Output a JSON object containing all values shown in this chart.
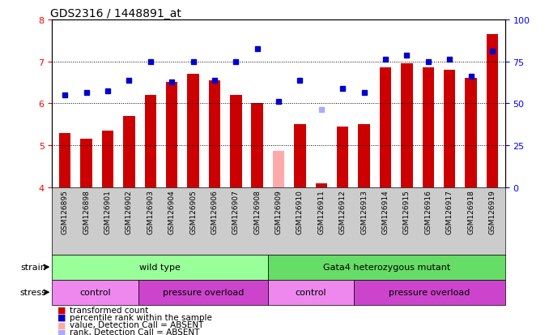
{
  "title": "GDS2316 / 1448891_at",
  "samples": [
    "GSM126895",
    "GSM126898",
    "GSM126901",
    "GSM126902",
    "GSM126903",
    "GSM126904",
    "GSM126905",
    "GSM126906",
    "GSM126907",
    "GSM126908",
    "GSM126909",
    "GSM126910",
    "GSM126911",
    "GSM126912",
    "GSM126913",
    "GSM126914",
    "GSM126915",
    "GSM126916",
    "GSM126917",
    "GSM126918",
    "GSM126919"
  ],
  "bar_values": [
    5.3,
    5.15,
    5.35,
    5.7,
    6.2,
    6.5,
    6.7,
    6.55,
    6.2,
    6.0,
    4.87,
    5.5,
    4.1,
    5.45,
    5.5,
    6.85,
    6.95,
    6.85,
    6.8,
    6.6,
    7.65
  ],
  "bar_absent": [
    false,
    false,
    false,
    false,
    false,
    false,
    false,
    false,
    false,
    false,
    true,
    false,
    false,
    false,
    false,
    false,
    false,
    false,
    false,
    false,
    false
  ],
  "dot_values": [
    6.2,
    6.25,
    6.3,
    6.55,
    7.0,
    6.5,
    7.0,
    6.55,
    7.0,
    7.3,
    6.05,
    6.55,
    5.85,
    6.35,
    6.25,
    7.05,
    7.15,
    7.0,
    7.05,
    6.65,
    7.25
  ],
  "dot_absent": [
    false,
    false,
    false,
    false,
    false,
    false,
    false,
    false,
    false,
    false,
    false,
    false,
    true,
    false,
    false,
    false,
    false,
    false,
    false,
    false,
    false
  ],
  "ylim": [
    4,
    8
  ],
  "y2lim": [
    0,
    100
  ],
  "yticks": [
    4,
    5,
    6,
    7,
    8
  ],
  "y2ticks": [
    0,
    25,
    50,
    75,
    100
  ],
  "bar_color": "#cc0000",
  "bar_absent_color": "#ffaaaa",
  "dot_color": "#0000cc",
  "dot_absent_color": "#aaaaff",
  "strain_groups": [
    {
      "label": "wild type",
      "start": 0,
      "end": 9,
      "color": "#99ff99"
    },
    {
      "label": "Gata4 heterozygous mutant",
      "start": 10,
      "end": 20,
      "color": "#66dd66"
    }
  ],
  "stress_groups": [
    {
      "label": "control",
      "start": 0,
      "end": 3,
      "color": "#ee88ee"
    },
    {
      "label": "pressure overload",
      "start": 4,
      "end": 9,
      "color": "#cc44cc"
    },
    {
      "label": "control",
      "start": 10,
      "end": 13,
      "color": "#ee88ee"
    },
    {
      "label": "pressure overload",
      "start": 14,
      "end": 20,
      "color": "#cc44cc"
    }
  ],
  "legend_items": [
    {
      "label": "transformed count",
      "color": "#cc0000"
    },
    {
      "label": "percentile rank within the sample",
      "color": "#0000cc"
    },
    {
      "label": "value, Detection Call = ABSENT",
      "color": "#ffaaaa"
    },
    {
      "label": "rank, Detection Call = ABSENT",
      "color": "#aaaaff"
    }
  ],
  "title_fontsize": 10,
  "tick_fontsize": 8,
  "group_fontsize": 8,
  "label_fontsize": 6.5,
  "legend_fontsize": 7.5
}
